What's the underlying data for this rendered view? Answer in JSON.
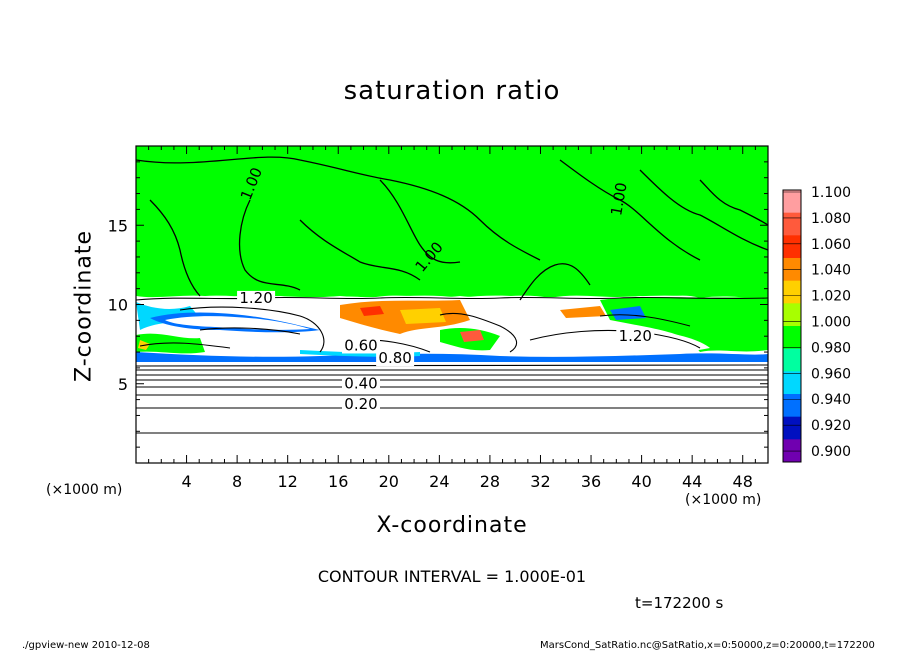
{
  "chart_data": {
    "type": "heatmap",
    "title": "saturation ratio",
    "xlabel": "X-coordinate",
    "ylabel": "Z-coordinate",
    "x_unit": "(×1000 m)",
    "y_unit": "(×1000 m)",
    "xlim": [
      0,
      50
    ],
    "ylim": [
      0,
      20
    ],
    "x_ticks": [
      "4",
      "8",
      "12",
      "16",
      "20",
      "24",
      "28",
      "32",
      "36",
      "40",
      "44",
      "48"
    ],
    "y_ticks": [
      "5",
      "10",
      "15"
    ],
    "colorbar": {
      "levels": [
        "1.100",
        "1.080",
        "1.060",
        "1.040",
        "1.020",
        "1.000",
        "0.980",
        "0.960",
        "0.940",
        "0.920",
        "0.900"
      ],
      "colors": [
        "#ff9ea0",
        "#ff5a3c",
        "#ff3000",
        "#ff8a00",
        "#ffd000",
        "#a8ff00",
        "#00ff00",
        "#00ffa0",
        "#00d8ff",
        "#0070ff",
        "#0010c0",
        "#7000b0"
      ]
    },
    "contour_labels": [
      "1.00",
      "1.00",
      "1.00",
      "1.20",
      "1.20",
      "0.60",
      "0.80",
      "0.40",
      "0.20"
    ],
    "contour_interval": "CONTOUR INTERVAL = 1.000E-01",
    "time": "t=172200 s"
  },
  "footer": {
    "left": "./gpview-new  2010-12-08",
    "right": "MarsCond_SatRatio.nc@SatRatio,x=0:50000,z=0:20000,t=172200"
  }
}
